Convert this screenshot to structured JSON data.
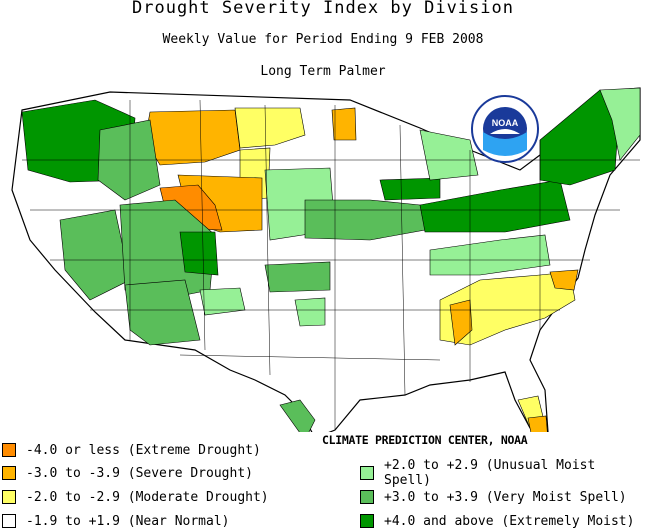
{
  "title": "Drought Severity Index by Division",
  "subtitle": "Weekly Value for Period Ending  9 FEB 2008",
  "index_name": "Long Term Palmer",
  "credit": "CLIMATE PREDICTION CENTER, NOAA",
  "logo_text": "NOAA",
  "legend": [
    {
      "label": "-4.0 or less (Extreme Drought)",
      "color": "#ff8c00"
    },
    {
      "label": "-3.0 to -3.9 (Severe Drought)",
      "color": "#ffb400"
    },
    {
      "label": "-2.0 to -2.9 (Moderate Drought)",
      "color": "#ffff64"
    },
    {
      "label": "-1.9 to +1.9 (Near Normal)",
      "color": "#ffffff"
    },
    {
      "label": "+2.0 to +2.9 (Unusual Moist Spell)",
      "color": "#96f096"
    },
    {
      "label": "+3.0 to +3.9 (Very Moist Spell)",
      "color": "#5abe5a"
    },
    {
      "label": "+4.0 and above (Extremely Moist)",
      "color": "#009600"
    }
  ]
}
